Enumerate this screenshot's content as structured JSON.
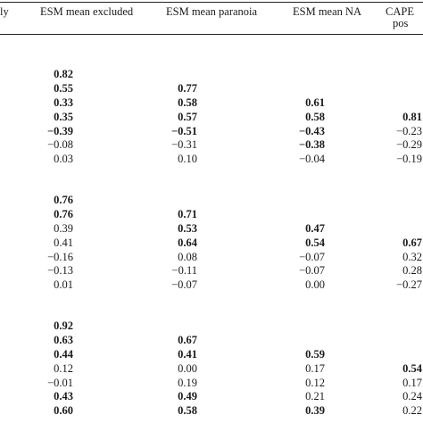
{
  "header": {
    "col0_fragment": "ly",
    "col1": "ESM mean excluded",
    "col2": "ESM mean paranoia",
    "col3": "ESM mean NA",
    "col4_line1": "CAPE",
    "col4_line2": "pos"
  },
  "blocks": [
    {
      "rows": [
        {
          "c1": {
            "v": "0.82",
            "b": true
          }
        },
        {
          "c1": {
            "v": "0.55",
            "b": true
          },
          "c2": {
            "v": "0.77",
            "b": true
          }
        },
        {
          "c1": {
            "v": "0.33",
            "b": true
          },
          "c2": {
            "v": "0.58",
            "b": true
          },
          "c3": {
            "v": "0.61",
            "b": true
          }
        },
        {
          "c1": {
            "v": "0.35",
            "b": true
          },
          "c2": {
            "v": "0.57",
            "b": true
          },
          "c3": {
            "v": "0.58",
            "b": true
          },
          "c4": {
            "v": "0.81",
            "b": true
          }
        },
        {
          "c1": {
            "v": "−0.39",
            "b": true
          },
          "c2": {
            "v": "−0.51",
            "b": true
          },
          "c3": {
            "v": "−0.43",
            "b": true
          },
          "c4": {
            "v": "−0.23",
            "b": false
          }
        },
        {
          "c1": {
            "v": "−0.08",
            "b": false
          },
          "c2": {
            "v": "−0.31",
            "b": false
          },
          "c3": {
            "v": "−0.38",
            "b": true
          },
          "c4": {
            "v": "−0.29",
            "b": false
          }
        },
        {
          "c1": {
            "v": "0.03",
            "b": false
          },
          "c2": {
            "v": "0.10",
            "b": false
          },
          "c3": {
            "v": "−0.04",
            "b": false
          },
          "c4": {
            "v": "−0.19",
            "b": false
          }
        }
      ]
    },
    {
      "rows": [
        {
          "c1": {
            "v": "0.76",
            "b": true
          }
        },
        {
          "c1": {
            "v": "0.76",
            "b": true
          },
          "c2": {
            "v": "0.71",
            "b": true
          }
        },
        {
          "c1": {
            "v": "0.39",
            "b": false
          },
          "c2": {
            "v": "0.53",
            "b": true
          },
          "c3": {
            "v": "0.47",
            "b": true
          }
        },
        {
          "c1": {
            "v": "0.41",
            "b": false
          },
          "c2": {
            "v": "0.64",
            "b": true
          },
          "c3": {
            "v": "0.54",
            "b": true
          },
          "c4": {
            "v": "0.67",
            "b": true
          }
        },
        {
          "c1": {
            "v": "−0.16",
            "b": false
          },
          "c2": {
            "v": "0.08",
            "b": false
          },
          "c3": {
            "v": "−0.07",
            "b": false
          },
          "c4": {
            "v": "0.32",
            "b": false
          }
        },
        {
          "c1": {
            "v": "−0.13",
            "b": false
          },
          "c2": {
            "v": "−0.11",
            "b": false
          },
          "c3": {
            "v": "−0.07",
            "b": false
          },
          "c4": {
            "v": "0.28",
            "b": false
          }
        },
        {
          "c1": {
            "v": "0.01",
            "b": false
          },
          "c2": {
            "v": "−0.07",
            "b": false
          },
          "c3": {
            "v": "0.00",
            "b": false
          },
          "c4": {
            "v": "−0.27",
            "b": false
          }
        }
      ]
    },
    {
      "rows": [
        {
          "c1": {
            "v": "0.92",
            "b": true
          }
        },
        {
          "c1": {
            "v": "0.63",
            "b": true
          },
          "c2": {
            "v": "0.67",
            "b": true
          }
        },
        {
          "c1": {
            "v": "0.44",
            "b": true
          },
          "c2": {
            "v": "0.41",
            "b": true
          },
          "c3": {
            "v": "0.59",
            "b": true
          }
        },
        {
          "c1": {
            "v": "0.12",
            "b": false
          },
          "c2": {
            "v": "0.00",
            "b": false
          },
          "c3": {
            "v": "0.17",
            "b": false
          },
          "c4": {
            "v": "0.54",
            "b": true
          }
        },
        {
          "c1": {
            "v": "−0.01",
            "b": false
          },
          "c2": {
            "v": "0.19",
            "b": false
          },
          "c3": {
            "v": "0.12",
            "b": false
          },
          "c4": {
            "v": "0.17",
            "b": false
          }
        },
        {
          "c1": {
            "v": "0.43",
            "b": true
          },
          "c2": {
            "v": "0.49",
            "b": true
          },
          "c3": {
            "v": "0.21",
            "b": false
          },
          "c4": {
            "v": "0.24",
            "b": false
          }
        },
        {
          "c1": {
            "v": "0.60",
            "b": true
          },
          "c2": {
            "v": "0.58",
            "b": true
          },
          "c3": {
            "v": "0.39",
            "b": true
          },
          "c4": {
            "v": "0.22",
            "b": false
          }
        }
      ]
    }
  ]
}
